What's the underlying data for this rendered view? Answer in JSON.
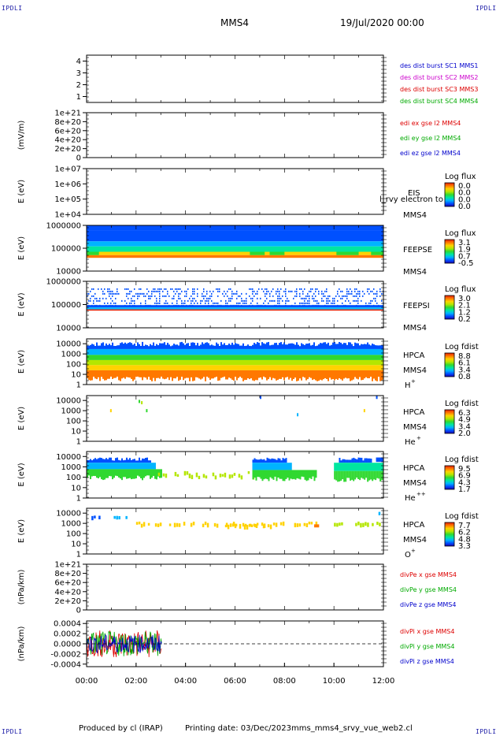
{
  "header": {
    "corner_tl": "IPDLI",
    "corner_tr": "IPDLI",
    "corner_bl": "IPDLI",
    "corner_br": "IPDLI",
    "spacecraft": "MMS4",
    "date": "19/Jul/2020 00:00"
  },
  "footer": {
    "produced_by": "Produced by cl (IRAP)",
    "printing_date": "Printing date: 03/Dec/2023",
    "file_name": "mms_mms4_srvy_vue_web2.cl"
  },
  "time_axis": {
    "tick_labels": [
      "00:00",
      "02:00",
      "04:00",
      "06:00",
      "08:00",
      "10:00",
      "12:00"
    ],
    "range_hours": [
      0,
      12
    ]
  },
  "colors": {
    "rainbow": [
      "#1a00b0",
      "#0050ff",
      "#00b4ff",
      "#00e6a0",
      "#30d830",
      "#b4e600",
      "#ffd200",
      "#ff7800",
      "#e61e00"
    ],
    "legend_blue": "#0000cc",
    "legend_magenta": "#cc00cc",
    "legend_red": "#dd0000",
    "legend_green": "#00aa00"
  },
  "chart_data": [
    {
      "type": "line",
      "name": "des-dist-burst",
      "yticks": [
        "4",
        "3",
        "2",
        "1"
      ],
      "ylim": [
        0.5,
        4.5
      ],
      "series": [
        {
          "name": "des dist burst SC1 MMS1",
          "color": "#0000cc",
          "values": []
        },
        {
          "name": "des dist burst SC2 MMS2",
          "color": "#cc00cc",
          "values": []
        },
        {
          "name": "des dist burst SC3 MMS3",
          "color": "#dd0000",
          "values": []
        },
        {
          "name": "des dist burst SC4 MMS4",
          "color": "#00aa00",
          "values": []
        }
      ]
    },
    {
      "type": "line",
      "name": "edi-electric-field",
      "ylabel": "(mV/m)",
      "yticks": [
        "1e+21",
        "8e+20",
        "6e+20",
        "4e+20",
        "2e+20",
        "0"
      ],
      "ylim": [
        0,
        1e+21
      ],
      "zero_line": true,
      "series": [
        {
          "name": "edi ex gse l2 MMS4",
          "color": "#dd0000",
          "values": []
        },
        {
          "name": "edi ey gse l2 MMS4",
          "color": "#00aa00",
          "values": []
        },
        {
          "name": "edi ez gse l2 MMS4",
          "color": "#0000cc",
          "values": []
        }
      ]
    },
    {
      "type": "heatmap",
      "name": "eis-spectrogram",
      "ylabel": "E (eV)",
      "yticks": [
        "1e+07",
        "1e+06",
        "1e+05",
        "1e+04"
      ],
      "ylim": [
        10000,
        10000000
      ],
      "scale": "log",
      "instrument": "EIS",
      "instrument_note": "l_rvy electron to",
      "spacecraft": "MMS4",
      "colorbar": {
        "title": "Log flux",
        "ticks": [
          "0.0",
          "0.0",
          "0.0",
          "0.0"
        ]
      },
      "bands": []
    },
    {
      "type": "heatmap",
      "name": "feeps-electron-spectrogram",
      "ylabel": "E (eV)",
      "yticks": [
        "1000000",
        "100000",
        "10000"
      ],
      "ylim": [
        10000,
        1000000
      ],
      "scale": "log",
      "instrument": "FEEPSE",
      "spacecraft": "MMS4",
      "colorbar": {
        "title": "Log flux",
        "ticks": [
          "3.1",
          "1.9",
          "0.7",
          "-0.5"
        ]
      },
      "bands": [
        {
          "t0": 0,
          "t1": 12,
          "e0": 600000,
          "e1": 1000000,
          "level": 0.08
        },
        {
          "t0": 0,
          "t1": 12,
          "e0": 200000,
          "e1": 600000,
          "level": 0.18
        },
        {
          "t0": 0,
          "t1": 12,
          "e0": 120000,
          "e1": 200000,
          "level": 0.28
        },
        {
          "t0": 0,
          "t1": 12,
          "e0": 70000,
          "e1": 120000,
          "level": 0.4
        },
        {
          "t0": 0,
          "t1": 12,
          "e0": 50000,
          "e1": 70000,
          "level": 0.72
        },
        {
          "t0": 0,
          "t1": 12,
          "e0": 38000,
          "e1": 50000,
          "level": 0.92
        },
        {
          "t0": 0,
          "t1": 0.5,
          "e0": 50000,
          "e1": 70000,
          "level": 0.55
        },
        {
          "t0": 6.6,
          "t1": 7.2,
          "e0": 50000,
          "e1": 70000,
          "level": 0.55
        },
        {
          "t0": 7.4,
          "t1": 8.0,
          "e0": 50000,
          "e1": 70000,
          "level": 0.55
        },
        {
          "t0": 10.1,
          "t1": 11.0,
          "e0": 50000,
          "e1": 70000,
          "level": 0.5
        },
        {
          "t0": 11.5,
          "t1": 12,
          "e0": 50000,
          "e1": 70000,
          "level": 0.5
        }
      ]
    },
    {
      "type": "heatmap",
      "name": "feeps-ion-spectrogram",
      "ylabel": "E (eV)",
      "yticks": [
        "1000000",
        "100000",
        "10000"
      ],
      "ylim": [
        10000,
        1000000
      ],
      "scale": "log",
      "instrument": "FEEPSI",
      "spacecraft": "MMS4",
      "colorbar": {
        "title": "Log flux",
        "ticks": [
          "3.0",
          "2.1",
          "1.2",
          "0.2"
        ]
      },
      "bands": [
        {
          "t0": 0,
          "t1": 12,
          "e0": 95000,
          "e1": 500000,
          "level": 0.08,
          "speckle": true
        },
        {
          "t0": 0,
          "t1": 12,
          "e0": 75000,
          "e1": 95000,
          "level": 0.18
        },
        {
          "t0": 0,
          "t1": 12,
          "e0": 62000,
          "e1": 75000,
          "level": 0.3
        },
        {
          "t0": 0,
          "t1": 12,
          "e0": 55000,
          "e1": 62000,
          "level": 0.95
        }
      ]
    },
    {
      "type": "heatmap",
      "name": "hpca-hplus-spectrogram",
      "ylabel": "E (eV)",
      "yticks": [
        "10000",
        "1000",
        "100",
        "10",
        "1"
      ],
      "ylim": [
        1,
        30000
      ],
      "scale": "log",
      "instrument": "HPCA",
      "spacecraft": "MMS4",
      "species": "H",
      "species_sup": "+",
      "colorbar": {
        "title": "Log fdist",
        "ticks": [
          "8.8",
          "6.1",
          "3.4",
          "0.8"
        ]
      },
      "bands": [
        {
          "t0": 0,
          "t1": 12,
          "e0": 3000,
          "e1": 15000,
          "level": 0.1,
          "ragged_top": true
        },
        {
          "t0": 0,
          "t1": 12,
          "e0": 800,
          "e1": 3000,
          "level": 0.3
        },
        {
          "t0": 0,
          "t1": 12,
          "e0": 250,
          "e1": 800,
          "level": 0.45
        },
        {
          "t0": 0,
          "t1": 12,
          "e0": 80,
          "e1": 250,
          "level": 0.6
        },
        {
          "t0": 0,
          "t1": 12,
          "e0": 25,
          "e1": 80,
          "level": 0.75
        },
        {
          "t0": 0,
          "t1": 12,
          "e0": 6,
          "e1": 25,
          "level": 0.9,
          "ragged_bottom": true
        }
      ]
    },
    {
      "type": "heatmap",
      "name": "hpca-heplus-spectrogram",
      "ylabel": "E (eV)",
      "yticks": [
        "10000",
        "1000",
        "100",
        "10",
        "1"
      ],
      "ylim": [
        1,
        30000
      ],
      "scale": "log",
      "instrument": "HPCA",
      "spacecraft": "MMS4",
      "species": "He",
      "species_sup": "+",
      "colorbar": {
        "title": "Log fdist",
        "ticks": [
          "6.3",
          "4.9",
          "3.4",
          "2.0"
        ]
      },
      "dots": [
        {
          "t": 0.95,
          "e": 1000,
          "level": 0.75
        },
        {
          "t": 2.1,
          "e": 8000,
          "level": 0.5
        },
        {
          "t": 2.2,
          "e": 6000,
          "level": 0.6
        },
        {
          "t": 2.4,
          "e": 1000,
          "level": 0.55
        },
        {
          "t": 7.0,
          "e": 20000,
          "level": 0.15
        },
        {
          "t": 8.5,
          "e": 400,
          "level": 0.2
        },
        {
          "t": 11.2,
          "e": 1000,
          "level": 0.7
        },
        {
          "t": 11.7,
          "e": 20000,
          "level": 0.15
        }
      ]
    },
    {
      "type": "heatmap",
      "name": "hpca-heplusplus-spectrogram",
      "ylabel": "E (eV)",
      "yticks": [
        "10000",
        "1000",
        "100",
        "10",
        "1"
      ],
      "ylim": [
        1,
        30000
      ],
      "scale": "log",
      "instrument": "HPCA",
      "spacecraft": "MMS4",
      "species": "He",
      "species_sup": "++",
      "colorbar": {
        "title": "Log fdist",
        "ticks": [
          "9.5",
          "6.9",
          "4.3",
          "1.7"
        ]
      },
      "bands": [
        {
          "t0": 0,
          "t1": 2.6,
          "e0": 2500,
          "e1": 8000,
          "level": 0.08,
          "ragged_top": true
        },
        {
          "t0": 0,
          "t1": 2.8,
          "e0": 600,
          "e1": 2500,
          "level": 0.3
        },
        {
          "t0": 0,
          "t1": 3.0,
          "e0": 150,
          "e1": 600,
          "level": 0.5,
          "ragged_bottom": true
        },
        {
          "t0": 2.6,
          "t1": 6.8,
          "e0": 80,
          "e1": 400,
          "level": 0.6,
          "sparse": true
        },
        {
          "t0": 6.7,
          "t1": 8.1,
          "e0": 2500,
          "e1": 8000,
          "level": 0.08,
          "ragged_top": true
        },
        {
          "t0": 6.7,
          "t1": 8.3,
          "e0": 500,
          "e1": 2500,
          "level": 0.3
        },
        {
          "t0": 6.7,
          "t1": 9.3,
          "e0": 120,
          "e1": 500,
          "level": 0.55,
          "ragged_bottom": true
        },
        {
          "t0": 10.2,
          "t1": 11.5,
          "e0": 2500,
          "e1": 8000,
          "level": 0.08,
          "ragged_top": true
        },
        {
          "t0": 10.0,
          "t1": 12.0,
          "e0": 400,
          "e1": 2500,
          "level": 0.35
        },
        {
          "t0": 10.0,
          "t1": 12.0,
          "e0": 100,
          "e1": 400,
          "level": 0.55,
          "ragged_bottom": true
        },
        {
          "t0": 11.7,
          "t1": 12.0,
          "e0": 3000,
          "e1": 8000,
          "level": 0.08
        }
      ]
    },
    {
      "type": "heatmap",
      "name": "hpca-oplus-spectrogram",
      "ylabel": "E (eV)",
      "yticks": [
        "10000",
        "1000",
        "100",
        "10",
        "1"
      ],
      "ylim": [
        1,
        30000
      ],
      "scale": "log",
      "instrument": "HPCA",
      "spacecraft": "MMS4",
      "species": "O",
      "species_sup": "+",
      "colorbar": {
        "title": "Log fdist",
        "ticks": [
          "7.7",
          "6.2",
          "4.8",
          "3.3"
        ]
      },
      "bands": [
        {
          "t0": 0.1,
          "t1": 0.6,
          "e0": 3000,
          "e1": 6000,
          "level": 0.15,
          "sparse": true
        },
        {
          "t0": 1.0,
          "t1": 1.6,
          "e0": 3000,
          "e1": 6000,
          "level": 0.3,
          "sparse": true
        },
        {
          "t0": 2.0,
          "t1": 8.0,
          "e0": 500,
          "e1": 1500,
          "level": 0.7,
          "sparse": true
        },
        {
          "t0": 5.5,
          "t1": 7.5,
          "e0": 400,
          "e1": 1000,
          "level": 0.8,
          "sparse": true
        },
        {
          "t0": 8.2,
          "t1": 9.4,
          "e0": 500,
          "e1": 1500,
          "level": 0.7,
          "sparse": true
        },
        {
          "t0": 9.2,
          "t1": 9.4,
          "e0": 400,
          "e1": 800,
          "level": 0.9
        },
        {
          "t0": 10.0,
          "t1": 12.0,
          "e0": 600,
          "e1": 1500,
          "level": 0.65,
          "sparse": true
        },
        {
          "t0": 11.8,
          "t1": 12.0,
          "e0": 8000,
          "e1": 15000,
          "level": 0.2,
          "sparse": true
        }
      ]
    },
    {
      "type": "line",
      "name": "div-pe",
      "ylabel": "(nPa/km)",
      "yticks": [
        "1e+21",
        "8e+20",
        "6e+20",
        "4e+20",
        "2e+20",
        "0"
      ],
      "ylim": [
        0,
        1e+21
      ],
      "zero_line": true,
      "series": [
        {
          "name": "divPe x gse MMS4",
          "color": "#dd0000",
          "values": []
        },
        {
          "name": "divPe y gse MMS4",
          "color": "#00aa00",
          "values": []
        },
        {
          "name": "divPe z gse MMS4",
          "color": "#0000cc",
          "values": []
        }
      ]
    },
    {
      "type": "line",
      "name": "div-pi",
      "ylabel": "(nPa/km)",
      "yticks": [
        "0.0004",
        "0.0002",
        "0.0000",
        "-0.0002",
        "-0.0004"
      ],
      "ylim": [
        -0.00045,
        0.00045
      ],
      "zero_line": true,
      "noise_time_range": [
        0,
        3.05
      ],
      "series": [
        {
          "name": "divPi x gse MMS4",
          "color": "#dd0000",
          "amplitude": 0.00028
        },
        {
          "name": "divPi y gse MMS4",
          "color": "#00aa00",
          "amplitude": 0.00025
        },
        {
          "name": "divPi z gse MMS4",
          "color": "#0000cc",
          "amplitude": 0.00018
        }
      ]
    }
  ]
}
